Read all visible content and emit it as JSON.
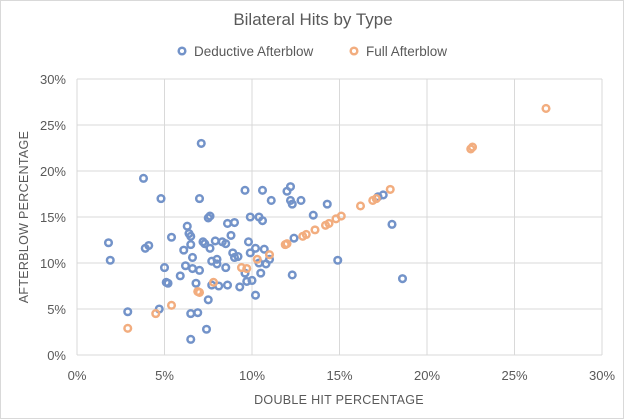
{
  "chart_data": {
    "type": "scatter",
    "title": "Bilateral Hits by Type",
    "xlabel": "DOUBLE HIT PERCENTAGE",
    "ylabel": "AFTERBLOW PERCENTAGE",
    "xlim": [
      0,
      30
    ],
    "ylim": [
      0,
      30
    ],
    "x_ticks": [
      "0%",
      "5%",
      "10%",
      "15%",
      "20%",
      "25%",
      "30%"
    ],
    "y_ticks": [
      "0%",
      "5%",
      "10%",
      "15%",
      "20%",
      "25%",
      "30%"
    ],
    "grid": true,
    "legend_position": "top",
    "series": [
      {
        "name": "Deductive Afterblow",
        "color": "#7393c9",
        "points": [
          [
            1.8,
            12.2
          ],
          [
            1.9,
            10.3
          ],
          [
            2.9,
            4.7
          ],
          [
            3.8,
            19.2
          ],
          [
            3.9,
            11.6
          ],
          [
            4.1,
            11.9
          ],
          [
            4.7,
            5.0
          ],
          [
            4.8,
            17.0
          ],
          [
            5.0,
            9.5
          ],
          [
            5.1,
            7.9
          ],
          [
            5.2,
            7.8
          ],
          [
            5.4,
            12.8
          ],
          [
            5.9,
            8.6
          ],
          [
            6.1,
            11.4
          ],
          [
            6.2,
            9.7
          ],
          [
            6.3,
            14.0
          ],
          [
            6.4,
            13.2
          ],
          [
            6.5,
            12.9
          ],
          [
            6.5,
            12.0
          ],
          [
            6.6,
            10.6
          ],
          [
            6.6,
            9.4
          ],
          [
            6.5,
            4.5
          ],
          [
            6.5,
            1.7
          ],
          [
            6.8,
            7.8
          ],
          [
            6.9,
            4.6
          ],
          [
            7.0,
            17.0
          ],
          [
            7.0,
            9.2
          ],
          [
            7.1,
            23.0
          ],
          [
            7.2,
            12.3
          ],
          [
            7.3,
            12.1
          ],
          [
            7.4,
            2.8
          ],
          [
            7.5,
            6.0
          ],
          [
            7.5,
            14.9
          ],
          [
            7.6,
            15.1
          ],
          [
            7.6,
            11.6
          ],
          [
            7.7,
            10.2
          ],
          [
            7.7,
            7.6
          ],
          [
            7.9,
            12.4
          ],
          [
            8.0,
            10.4
          ],
          [
            8.0,
            9.9
          ],
          [
            8.1,
            7.5
          ],
          [
            8.3,
            12.3
          ],
          [
            8.5,
            12.1
          ],
          [
            8.5,
            9.5
          ],
          [
            8.6,
            7.6
          ],
          [
            8.6,
            14.3
          ],
          [
            8.8,
            13.0
          ],
          [
            8.9,
            11.1
          ],
          [
            9.0,
            14.4
          ],
          [
            9.0,
            10.6
          ],
          [
            9.2,
            10.7
          ],
          [
            9.3,
            7.4
          ],
          [
            9.6,
            17.9
          ],
          [
            9.6,
            8.9
          ],
          [
            9.7,
            8.0
          ],
          [
            9.8,
            12.3
          ],
          [
            9.9,
            15.0
          ],
          [
            9.9,
            11.1
          ],
          [
            10.0,
            8.1
          ],
          [
            10.2,
            6.5
          ],
          [
            10.2,
            11.6
          ],
          [
            10.4,
            15.0
          ],
          [
            10.4,
            10.0
          ],
          [
            10.5,
            8.9
          ],
          [
            10.6,
            17.9
          ],
          [
            10.6,
            14.6
          ],
          [
            10.7,
            11.5
          ],
          [
            10.8,
            9.9
          ],
          [
            11.0,
            10.4
          ],
          [
            11.1,
            16.8
          ],
          [
            12.0,
            17.8
          ],
          [
            12.2,
            18.3
          ],
          [
            12.2,
            16.8
          ],
          [
            12.3,
            16.4
          ],
          [
            12.3,
            8.7
          ],
          [
            12.4,
            12.7
          ],
          [
            12.8,
            16.8
          ],
          [
            13.5,
            15.2
          ],
          [
            14.3,
            16.4
          ],
          [
            14.9,
            10.3
          ],
          [
            17.2,
            17.2
          ],
          [
            17.5,
            17.4
          ],
          [
            18.0,
            14.2
          ],
          [
            18.6,
            8.3
          ]
        ]
      },
      {
        "name": "Full Afterblow",
        "color": "#f2ad7f",
        "points": [
          [
            2.9,
            2.9
          ],
          [
            4.5,
            4.5
          ],
          [
            5.4,
            5.4
          ],
          [
            6.9,
            6.9
          ],
          [
            7.0,
            6.8
          ],
          [
            7.8,
            7.9
          ],
          [
            9.4,
            9.5
          ],
          [
            9.7,
            9.4
          ],
          [
            10.3,
            10.4
          ],
          [
            11.0,
            10.9
          ],
          [
            11.9,
            12.0
          ],
          [
            12.0,
            12.1
          ],
          [
            12.9,
            12.9
          ],
          [
            13.1,
            13.1
          ],
          [
            13.6,
            13.6
          ],
          [
            14.2,
            14.1
          ],
          [
            14.4,
            14.3
          ],
          [
            14.8,
            14.8
          ],
          [
            15.1,
            15.1
          ],
          [
            16.2,
            16.2
          ],
          [
            16.9,
            16.8
          ],
          [
            17.1,
            17.0
          ],
          [
            17.9,
            18.0
          ],
          [
            22.5,
            22.4
          ],
          [
            22.6,
            22.6
          ],
          [
            26.8,
            26.8
          ]
        ]
      }
    ]
  }
}
